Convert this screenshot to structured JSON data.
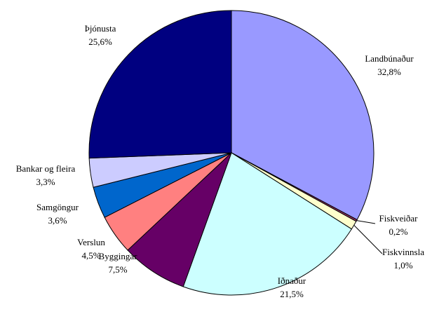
{
  "chart_data": {
    "type": "pie",
    "categories": [
      "Landbúnaður",
      "Fiskveiðar",
      "Fiskvinnsla",
      "Iðnaður",
      "Byggingar",
      "Verslun",
      "Samgöngur",
      "Bankar og fleira",
      "Þjónusta"
    ],
    "values": [
      32.8,
      0.2,
      1.0,
      21.5,
      7.5,
      4.5,
      3.6,
      3.3,
      25.6
    ],
    "value_labels": [
      "32,8%",
      "0,2%",
      "1,0%",
      "21,5%",
      "7,5%",
      "4,5%",
      "3,6%",
      "3,3%",
      "25,6%"
    ],
    "colors": [
      "#9999ff",
      "#993366",
      "#ffffcc",
      "#ccffff",
      "#660066",
      "#ff8080",
      "#0066cc",
      "#ccccff",
      "#000080"
    ]
  }
}
